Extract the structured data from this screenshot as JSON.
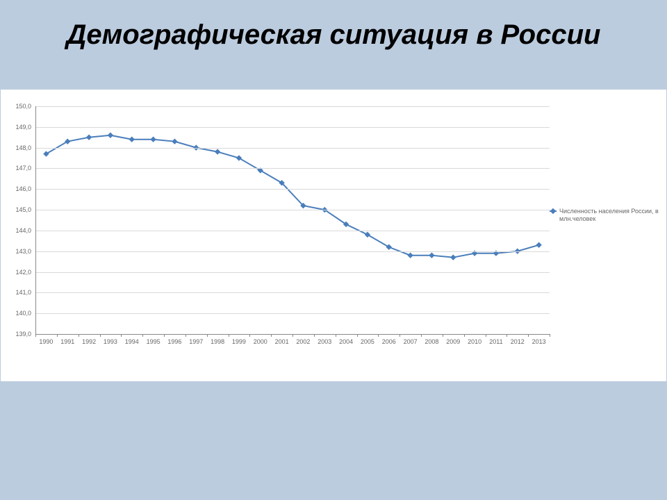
{
  "title": "Демографическая ситуация в России",
  "chart": {
    "type": "line",
    "legend_label": "Численность населения России, в млн.человек",
    "background_color": "#ffffff",
    "slide_background_color": "#bcccdf",
    "series_color": "#4a7ebb",
    "grid_color": "#d9d9d9",
    "axis_color": "#888888",
    "tick_font_size": 9,
    "tick_font_color": "#666666",
    "line_width": 2,
    "marker": "diamond",
    "marker_size": 7,
    "ylim": [
      139.0,
      150.0
    ],
    "ytick_step": 1.0,
    "y_decimal": 1,
    "x_categories": [
      "1990",
      "1991",
      "1992",
      "1993",
      "1994",
      "1995",
      "1996",
      "1997",
      "1998",
      "1999",
      "2000",
      "2001",
      "2002",
      "2003",
      "2004",
      "2005",
      "2006",
      "2007",
      "2008",
      "2009",
      "2010",
      "2011",
      "2012",
      "2013"
    ],
    "values": [
      147.7,
      148.3,
      148.5,
      148.6,
      148.4,
      148.4,
      148.3,
      148.0,
      147.8,
      147.5,
      146.9,
      146.3,
      145.2,
      145.0,
      144.3,
      143.8,
      143.2,
      142.8,
      142.8,
      142.7,
      142.9,
      142.9,
      143.0,
      143.3
    ]
  }
}
